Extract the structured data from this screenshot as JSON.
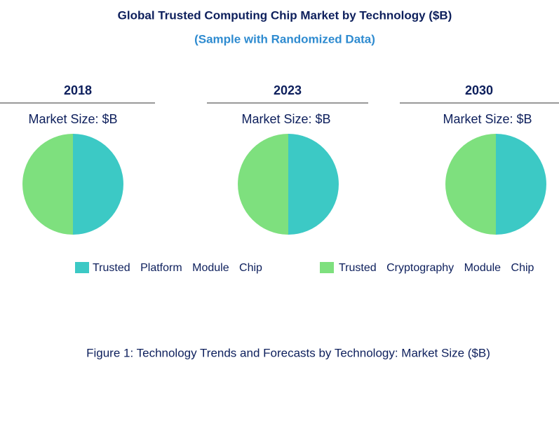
{
  "header": {
    "title": "Global Trusted Computing Chip Market by Technology ($B)",
    "subtitle": "(Sample with Randomized Data)"
  },
  "caption": "Figure 1: Technology Trends and Forecasts by Technology: Market Size ($B)",
  "chart_data": [
    {
      "type": "pie",
      "title": "2018",
      "subtitle": "Market Size: $B",
      "categories": [
        "Trusted Platform Module Chip",
        "Trusted Cryptography Module Chip"
      ],
      "values": [
        50,
        50
      ],
      "colors": [
        "#3cc9c5",
        "#7ee07e"
      ]
    },
    {
      "type": "pie",
      "title": "2023",
      "subtitle": "Market Size: $B",
      "categories": [
        "Trusted Platform Module Chip",
        "Trusted Cryptography Module Chip"
      ],
      "values": [
        50,
        50
      ],
      "colors": [
        "#3cc9c5",
        "#7ee07e"
      ]
    },
    {
      "type": "pie",
      "title": "2030",
      "subtitle": "Market Size: $B",
      "categories": [
        "Trusted Platform Module Chip",
        "Trusted Cryptography Module Chip"
      ],
      "values": [
        50,
        50
      ],
      "colors": [
        "#3cc9c5",
        "#7ee07e"
      ]
    }
  ]
}
